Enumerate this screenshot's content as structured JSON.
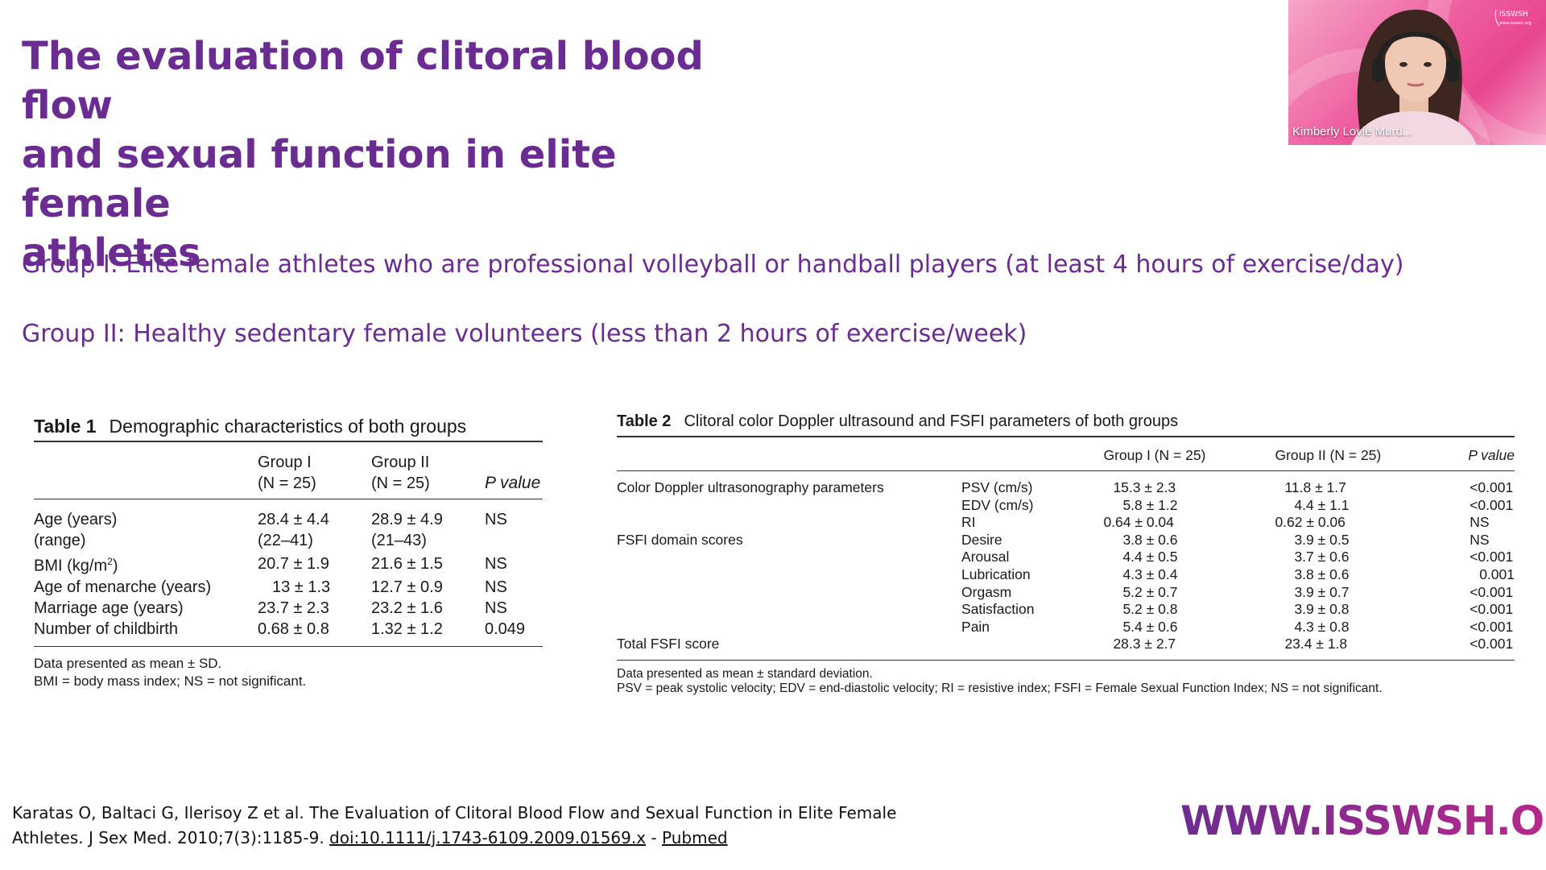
{
  "slide": {
    "title_lines": [
      "The evaluation of clitoral blood flow",
      "and sexual function in elite female",
      "athletes"
    ],
    "group1": "Group I: Elite female athletes who are professional volleyball or handball players (at least 4 hours of exercise/day)",
    "group2": "Group II: Healthy sedentary female volunteers (less than 2 hours of exercise/week)"
  },
  "table1": {
    "caption_num": "Table 1",
    "caption_text": "Demographic characteristics of both groups",
    "headers": {
      "g1_l1": "Group I",
      "g1_l2": "(N = 25)",
      "g2_l1": "Group II",
      "g2_l2": "(N = 25)",
      "p": "P value"
    },
    "rows": [
      {
        "label": "Age (years)",
        "g1": "28.4 ± 4.4",
        "g2": "28.9 ± 4.9",
        "p": "NS"
      },
      {
        "label": "(range)",
        "g1": "(22–41)",
        "g2": "(21–43)",
        "p": ""
      },
      {
        "label_pre": "BMI (kg/m",
        "label_sup": "2",
        "label_post": ")",
        "g1": "20.7 ± 1.9",
        "g2": "21.6 ± 1.5",
        "p": "NS"
      },
      {
        "label": "Age of menarche (years)",
        "g1": "13 ± 1.3",
        "g2": "12.7 ± 0.9",
        "p": "NS"
      },
      {
        "label": "Marriage age (years)",
        "g1": "23.7 ± 2.3",
        "g2": "23.2 ± 1.6",
        "p": "NS"
      },
      {
        "label": "Number of childbirth",
        "g1": "0.68 ± 0.8",
        "g2": "1.32 ± 1.2",
        "p": "0.049"
      }
    ],
    "footnotes": [
      "Data presented as mean ± SD.",
      "BMI = body mass index; NS = not significant."
    ]
  },
  "table2": {
    "caption_num": "Table 2",
    "caption_text": "Clitoral color Doppler ultrasound and FSFI parameters of both groups",
    "headers": {
      "g1": "Group I (N = 25)",
      "g2": "Group II (N = 25)",
      "p": "P value"
    },
    "rows": [
      {
        "section": "Color Doppler ultrasonography parameters",
        "param": "PSV (cm/s)",
        "g1": "15.3 ± 2.3",
        "g2": "11.8 ± 1.7",
        "p": "<0.001"
      },
      {
        "section": "",
        "param": "EDV (cm/s)",
        "g1": "5.8 ± 1.2",
        "g2": "4.4 ± 1.1",
        "p": "<0.001"
      },
      {
        "section": "",
        "param": "RI",
        "g1": "0.64 ± 0.04",
        "g2": "0.62 ± 0.06",
        "p": "NS"
      },
      {
        "section": "FSFI domain scores",
        "param": "Desire",
        "g1": "3.8 ± 0.6",
        "g2": "3.9 ± 0.5",
        "p": "NS"
      },
      {
        "section": "",
        "param": "Arousal",
        "g1": "4.4 ± 0.5",
        "g2": "3.7 ± 0.6",
        "p": "<0.001"
      },
      {
        "section": "",
        "param": "Lubrication",
        "g1": "4.3 ± 0.4",
        "g2": "3.8 ± 0.6",
        "p": "0.001"
      },
      {
        "section": "",
        "param": "Orgasm",
        "g1": "5.2 ± 0.7",
        "g2": "3.9 ± 0.7",
        "p": "<0.001"
      },
      {
        "section": "",
        "param": "Satisfaction",
        "g1": "5.2 ± 0.8",
        "g2": "3.9 ± 0.8",
        "p": "<0.001"
      },
      {
        "section": "",
        "param": "Pain",
        "g1": "5.4 ± 0.6",
        "g2": "4.3 ± 0.8",
        "p": "<0.001"
      },
      {
        "section": "Total FSFI score",
        "param": "",
        "g1": "28.3 ± 2.7",
        "g2": "23.4 ± 1.8",
        "p": "<0.001"
      }
    ],
    "footnotes": [
      "Data presented as mean ± standard deviation.",
      "PSV = peak systolic velocity; EDV = end-diastolic velocity; RI = resistive index; FSFI = Female Sexual Function Index; NS = not significant."
    ]
  },
  "citation": {
    "line1": "Karatas O, Baltaci G, Ilerisoy Z et al. The Evaluation of Clitoral Blood Flow and Sexual Function in Elite Female",
    "line2_prefix": "Athletes. J Sex Med. 2010;7(3):1185-9. ",
    "doi_link": "doi:10.1111/j.1743-6109.2009.01569.x",
    "separator": " - ",
    "pubmed_link": "Pubmed"
  },
  "brand": {
    "url_text": "WWW.ISSWSH.ORG",
    "color": "#6b2c91"
  },
  "video": {
    "speaker_name": "Kimberly Lovie Murd...",
    "logo_text": "ISSWSH",
    "logo_subtext": "www.isswsh.org",
    "background_color": "#ee5fa0"
  }
}
